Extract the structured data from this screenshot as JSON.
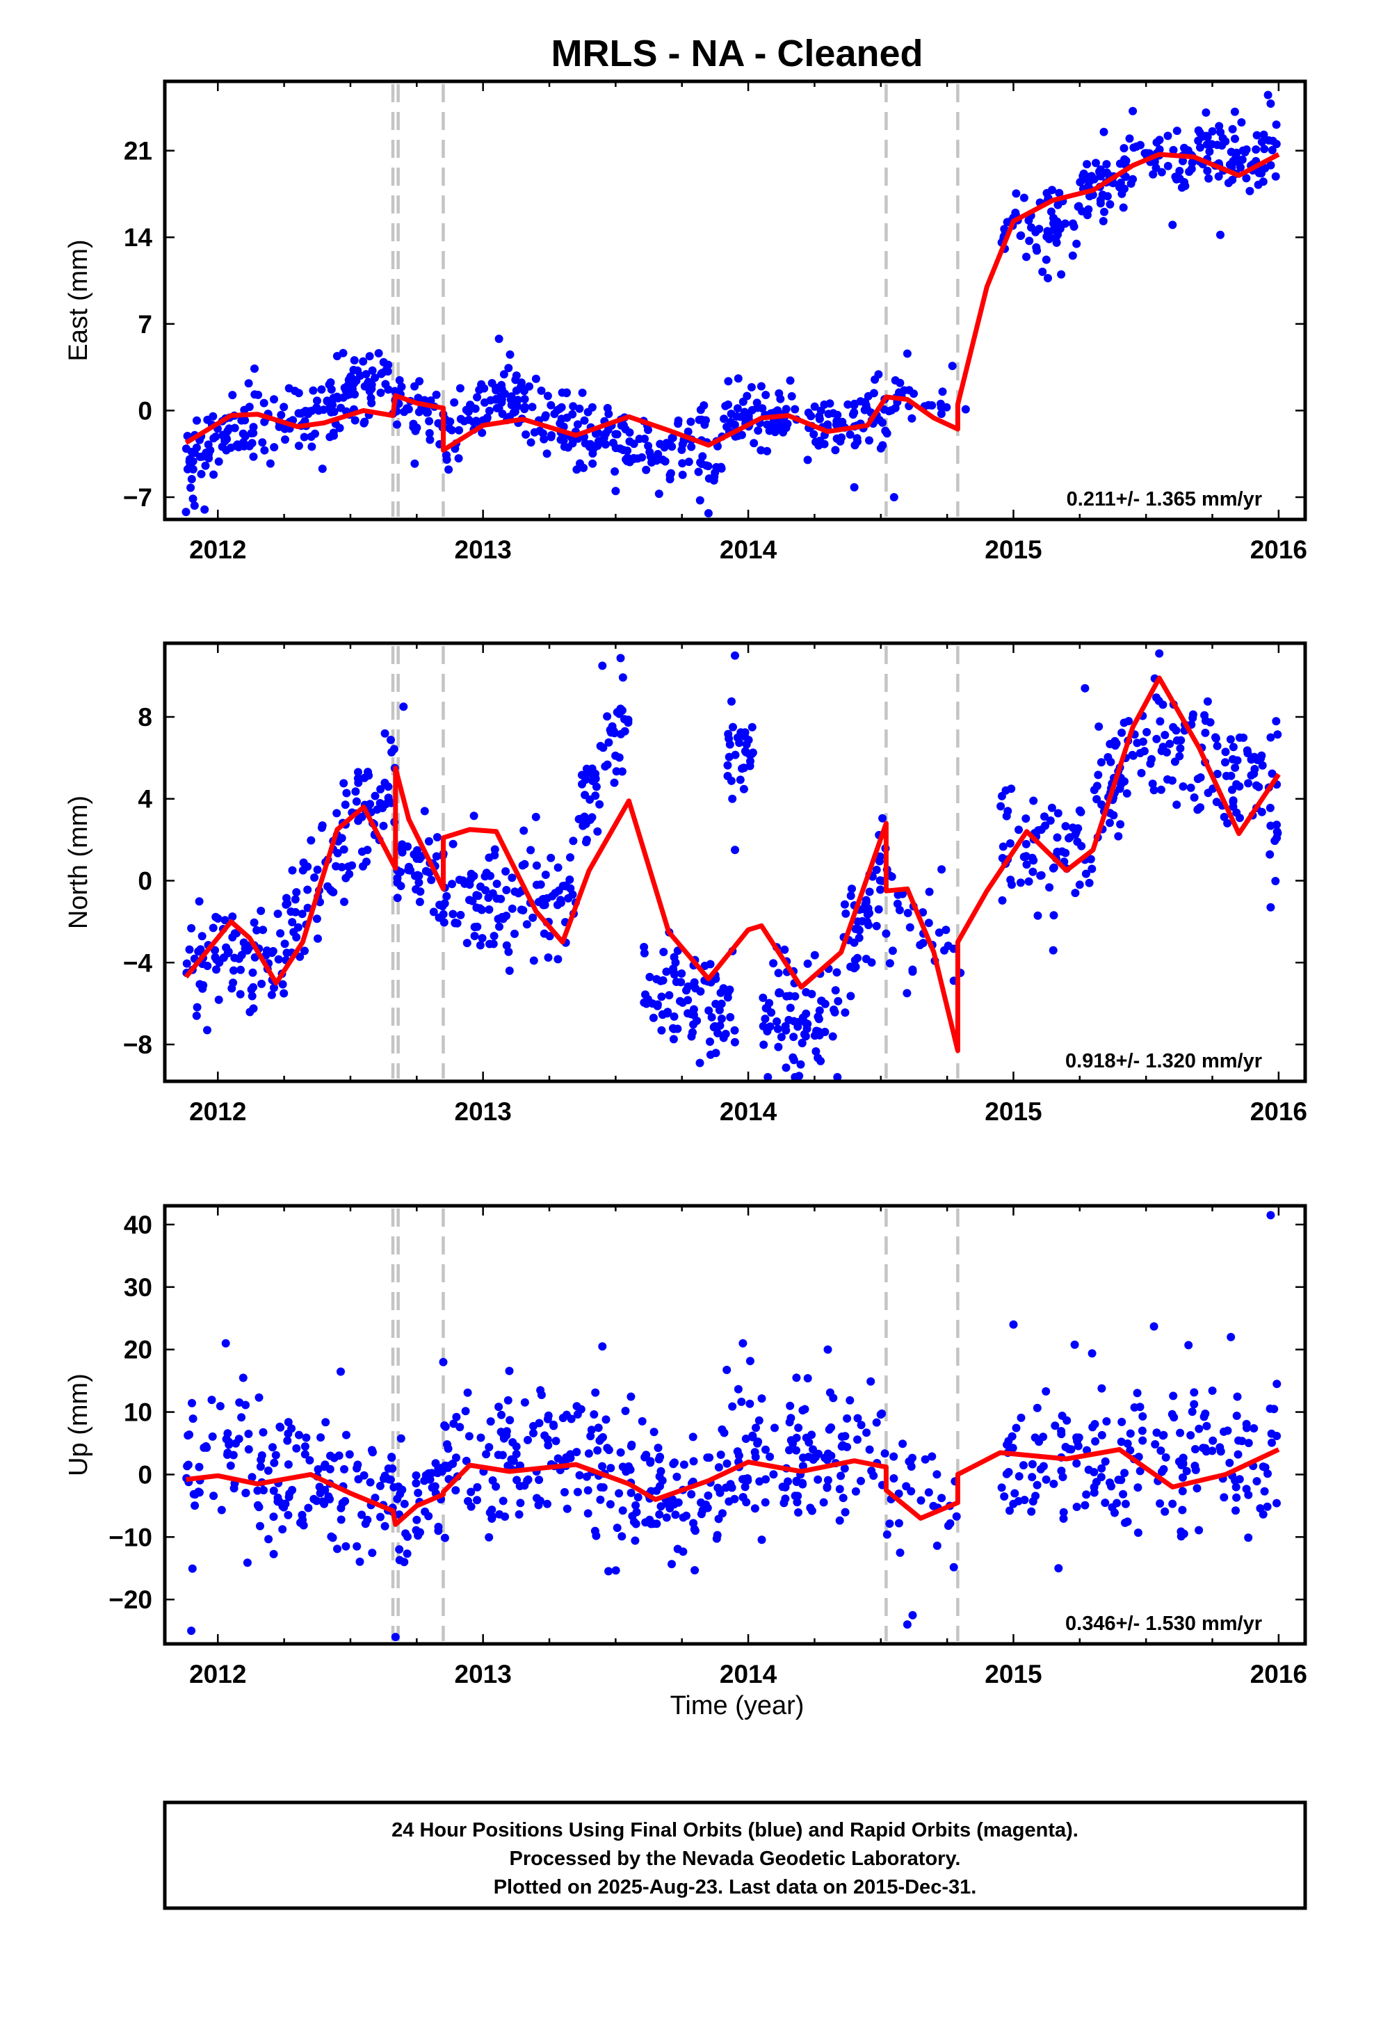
{
  "title": "MRLS  - NA - Cleaned",
  "xlabel": "Time (year)",
  "caption": [
    "24 Hour Positions Using Final Orbits (blue) and Rapid Orbits (magenta).",
    "Processed by the Nevada Geodetic Laboratory.",
    "Plotted on 2025-Aug-23. Last data on 2015-Dec-31."
  ],
  "colors": {
    "points": "#0000ff",
    "model": "#ff0000",
    "breaks": "#c4c4c4"
  },
  "chart_data": [
    {
      "type": "scatter",
      "ylabel": "East (mm)",
      "rate_label": "0.211+/- 1.365 mm/yr",
      "xlim": [
        2011.8,
        2016.1
      ],
      "ylim": [
        -8.8,
        26.6
      ],
      "xticks": [
        2012,
        2013,
        2014,
        2015,
        2016
      ],
      "yticks": [
        -7,
        0,
        7,
        14,
        21
      ],
      "breaks": [
        2012.66,
        2012.68,
        2012.85,
        2014.52,
        2014.79
      ],
      "segments": [
        [
          2011.88,
          2012.67
        ],
        [
          2012.67,
          2012.85
        ],
        [
          2012.85,
          2014.52
        ],
        [
          2014.52,
          2014.79
        ],
        [
          2014.79,
          2016.0
        ]
      ],
      "model": [
        [
          2011.88,
          -2.6
        ],
        [
          2012.05,
          -0.4
        ],
        [
          2012.15,
          -0.3
        ],
        [
          2012.3,
          -1.3
        ],
        [
          2012.4,
          -1.0
        ],
        [
          2012.55,
          0
        ],
        [
          2012.66,
          -0.4
        ],
        [
          2012.67,
          1.2
        ],
        [
          2012.75,
          0.6
        ],
        [
          2012.85,
          0.2
        ],
        [
          2012.85,
          -3.2
        ],
        [
          2013.0,
          -1.2
        ],
        [
          2013.15,
          -0.7
        ],
        [
          2013.35,
          -2.0
        ],
        [
          2013.55,
          -0.5
        ],
        [
          2013.7,
          -1.6
        ],
        [
          2013.85,
          -2.8
        ],
        [
          2014.05,
          -0.6
        ],
        [
          2014.15,
          -0.4
        ],
        [
          2014.3,
          -1.7
        ],
        [
          2014.45,
          -1.2
        ],
        [
          2014.52,
          1.1
        ],
        [
          2014.6,
          0.9
        ],
        [
          2014.7,
          -0.6
        ],
        [
          2014.79,
          -1.5
        ],
        [
          2014.79,
          0.5
        ],
        [
          2014.9,
          10.0
        ],
        [
          2015.0,
          15.3
        ],
        [
          2015.15,
          17.0
        ],
        [
          2015.3,
          17.8
        ],
        [
          2015.45,
          19.8
        ],
        [
          2015.55,
          20.7
        ],
        [
          2015.68,
          20.5
        ],
        [
          2015.85,
          19.0
        ],
        [
          2016.0,
          20.7
        ]
      ],
      "clusters": [
        {
          "x": [
            2011.88,
            2012.1
          ],
          "y": [
            -4.5,
            -0.5
          ],
          "sd": 1.5,
          "n": 60
        },
        {
          "x": [
            2012.1,
            2012.45
          ],
          "y": [
            -1.0,
            0.0
          ],
          "sd": 1.3,
          "n": 80
        },
        {
          "x": [
            2012.45,
            2012.67
          ],
          "y": [
            1.5,
            2.5
          ],
          "sd": 1.4,
          "n": 60
        },
        {
          "x": [
            2012.67,
            2012.85
          ],
          "y": [
            0.5,
            -0.5
          ],
          "sd": 1.3,
          "n": 40
        },
        {
          "x": [
            2012.85,
            2013.0
          ],
          "y": [
            -2.5,
            0.5
          ],
          "sd": 1.3,
          "n": 30
        },
        {
          "x": [
            2013.0,
            2013.3
          ],
          "y": [
            1.5,
            -1.0
          ],
          "sd": 1.3,
          "n": 70
        },
        {
          "x": [
            2013.3,
            2013.7
          ],
          "y": [
            -1.5,
            -3.0
          ],
          "sd": 1.4,
          "n": 90
        },
        {
          "x": [
            2013.7,
            2013.9
          ],
          "y": [
            -2.5,
            -3.5
          ],
          "sd": 1.5,
          "n": 45
        },
        {
          "x": [
            2013.9,
            2014.2
          ],
          "y": [
            -1.0,
            -1.0
          ],
          "sd": 1.4,
          "n": 70
        },
        {
          "x": [
            2014.2,
            2014.52
          ],
          "y": [
            -1.5,
            -0.5
          ],
          "sd": 1.3,
          "n": 70
        },
        {
          "x": [
            2014.52,
            2014.79
          ],
          "y": [
            0.8,
            0.5
          ],
          "sd": 1.2,
          "n": 25
        },
        {
          "x": [
            2014.95,
            2015.25
          ],
          "y": [
            15.0,
            15.5
          ],
          "sd": 1.4,
          "n": 60
        },
        {
          "x": [
            2015.25,
            2015.55
          ],
          "y": [
            17.5,
            20.5
          ],
          "sd": 1.4,
          "n": 70
        },
        {
          "x": [
            2015.55,
            2016.0
          ],
          "y": [
            20.8,
            20.4
          ],
          "sd": 1.3,
          "n": 100
        }
      ],
      "outliers": [
        [
          2011.88,
          -8.2
        ],
        [
          2011.95,
          -8.0
        ],
        [
          2012.45,
          4.4
        ],
        [
          2013.06,
          5.8
        ],
        [
          2013.5,
          -6.5
        ],
        [
          2013.85,
          -8.3
        ],
        [
          2014.4,
          -6.2
        ],
        [
          2014.55,
          -7.0
        ],
        [
          2014.77,
          3.6
        ],
        [
          2014.82,
          0.1
        ],
        [
          2015.13,
          10.7
        ],
        [
          2015.18,
          11.0
        ],
        [
          2015.1,
          16.8
        ],
        [
          2015.96,
          25.5
        ],
        [
          2015.97,
          24.8
        ],
        [
          2015.78,
          14.2
        ],
        [
          2015.45,
          24.2
        ],
        [
          2015.6,
          15.0
        ],
        [
          2014.6,
          4.6
        ]
      ]
    },
    {
      "type": "scatter",
      "ylabel": "North (mm)",
      "rate_label": "0.918+/- 1.320 mm/yr",
      "xlim": [
        2011.8,
        2016.1
      ],
      "ylim": [
        -9.8,
        11.6
      ],
      "xticks": [
        2012,
        2013,
        2014,
        2015,
        2016
      ],
      "yticks": [
        -8,
        -4,
        0,
        4,
        8
      ],
      "breaks": [
        2012.66,
        2012.68,
        2012.85,
        2014.52,
        2014.79
      ],
      "segments": [
        [
          2011.88,
          2012.67
        ],
        [
          2012.67,
          2012.85
        ],
        [
          2012.85,
          2014.52
        ],
        [
          2014.52,
          2014.79
        ],
        [
          2014.79,
          2016.0
        ]
      ],
      "model": [
        [
          2011.88,
          -4.7
        ],
        [
          2012.05,
          -2.0
        ],
        [
          2012.12,
          -2.8
        ],
        [
          2012.22,
          -5.0
        ],
        [
          2012.32,
          -3.0
        ],
        [
          2012.45,
          2.5
        ],
        [
          2012.55,
          3.6
        ],
        [
          2012.67,
          0.6
        ],
        [
          2012.67,
          5.5
        ],
        [
          2012.72,
          3.0
        ],
        [
          2012.85,
          -0.4
        ],
        [
          2012.85,
          2.1
        ],
        [
          2012.95,
          2.5
        ],
        [
          2013.05,
          2.4
        ],
        [
          2013.2,
          -1.5
        ],
        [
          2013.3,
          -3.0
        ],
        [
          2013.4,
          0.5
        ],
        [
          2013.55,
          3.9
        ],
        [
          2013.7,
          -2.5
        ],
        [
          2013.85,
          -4.8
        ],
        [
          2014.0,
          -2.4
        ],
        [
          2014.05,
          -2.2
        ],
        [
          2014.2,
          -5.2
        ],
        [
          2014.35,
          -3.5
        ],
        [
          2014.52,
          2.8
        ],
        [
          2014.52,
          -0.5
        ],
        [
          2014.6,
          -0.4
        ],
        [
          2014.7,
          -3.5
        ],
        [
          2014.79,
          -8.3
        ],
        [
          2014.79,
          -3.0
        ],
        [
          2014.9,
          -0.5
        ],
        [
          2015.05,
          2.4
        ],
        [
          2015.2,
          0.5
        ],
        [
          2015.3,
          1.5
        ],
        [
          2015.45,
          7.5
        ],
        [
          2015.55,
          9.9
        ],
        [
          2015.7,
          6.5
        ],
        [
          2015.85,
          2.3
        ],
        [
          2016.0,
          5.2
        ]
      ],
      "clusters": [
        {
          "x": [
            2011.88,
            2012.25
          ],
          "y": [
            -3.5,
            -4.0
          ],
          "sd": 1.3,
          "n": 80
        },
        {
          "x": [
            2012.25,
            2012.5
          ],
          "y": [
            -2.5,
            2.0
          ],
          "sd": 1.5,
          "n": 60
        },
        {
          "x": [
            2012.5,
            2012.67
          ],
          "y": [
            3.0,
            5.0
          ],
          "sd": 1.4,
          "n": 45
        },
        {
          "x": [
            2012.67,
            2012.85
          ],
          "y": [
            1.0,
            0.0
          ],
          "sd": 1.1,
          "n": 40
        },
        {
          "x": [
            2012.85,
            2013.0
          ],
          "y": [
            -0.5,
            -1.0
          ],
          "sd": 1.2,
          "n": 35
        },
        {
          "x": [
            2013.0,
            2013.35
          ],
          "y": [
            -1.0,
            -0.5
          ],
          "sd": 1.4,
          "n": 80
        },
        {
          "x": [
            2013.35,
            2013.55
          ],
          "y": [
            3.0,
            8.5
          ],
          "sd": 1.3,
          "n": 55
        },
        {
          "x": [
            2013.6,
            2013.95
          ],
          "y": [
            -5.0,
            -6.5
          ],
          "sd": 1.3,
          "n": 90
        },
        {
          "x": [
            2013.92,
            2014.02
          ],
          "y": [
            6.2,
            6.5
          ],
          "sd": 1.1,
          "n": 30
        },
        {
          "x": [
            2014.05,
            2014.35
          ],
          "y": [
            -6.5,
            -7.0
          ],
          "sd": 1.3,
          "n": 80
        },
        {
          "x": [
            2014.35,
            2014.52
          ],
          "y": [
            -4.0,
            0.5
          ],
          "sd": 1.5,
          "n": 50
        },
        {
          "x": [
            2014.52,
            2014.79
          ],
          "y": [
            -1.0,
            -3.0
          ],
          "sd": 1.3,
          "n": 30
        },
        {
          "x": [
            2014.95,
            2015.3
          ],
          "y": [
            1.5,
            1.5
          ],
          "sd": 1.4,
          "n": 70
        },
        {
          "x": [
            2015.3,
            2015.55
          ],
          "y": [
            3.5,
            8.0
          ],
          "sd": 1.4,
          "n": 60
        },
        {
          "x": [
            2015.55,
            2016.0
          ],
          "y": [
            7.0,
            4.0
          ],
          "sd": 1.4,
          "n": 100
        }
      ],
      "outliers": [
        [
          2013.45,
          10.5
        ],
        [
          2013.95,
          11.0
        ],
        [
          2013.95,
          1.5
        ],
        [
          2013.94,
          4.0
        ],
        [
          2012.7,
          8.5
        ],
        [
          2015.27,
          9.4
        ],
        [
          2015.55,
          11.1
        ],
        [
          2015.97,
          -1.3
        ],
        [
          2014.8,
          -4.5
        ],
        [
          2013.1,
          -4.4
        ],
        [
          2015.15,
          -3.4
        ],
        [
          2012.78,
          3.4
        ],
        [
          2011.92,
          -6.6
        ],
        [
          2011.96,
          -7.3
        ]
      ]
    },
    {
      "type": "scatter",
      "ylabel": "Up (mm)",
      "rate_label": "0.346+/- 1.530 mm/yr",
      "xlim": [
        2011.8,
        2016.1
      ],
      "ylim": [
        -27.1,
        43.0
      ],
      "xticks": [
        2012,
        2013,
        2014,
        2015,
        2016
      ],
      "yticks": [
        -20,
        -10,
        0,
        10,
        20,
        30,
        40
      ],
      "breaks": [
        2012.66,
        2012.68,
        2012.85,
        2014.52,
        2014.79
      ],
      "segments": [
        [
          2011.88,
          2012.67
        ],
        [
          2012.67,
          2012.85
        ],
        [
          2012.85,
          2014.52
        ],
        [
          2014.52,
          2014.79
        ],
        [
          2014.79,
          2016.0
        ]
      ],
      "model": [
        [
          2011.88,
          -0.8
        ],
        [
          2012.0,
          -0.2
        ],
        [
          2012.15,
          -1.5
        ],
        [
          2012.35,
          0.0
        ],
        [
          2012.5,
          -3.0
        ],
        [
          2012.66,
          -5.8
        ],
        [
          2012.67,
          -8.0
        ],
        [
          2012.75,
          -5.0
        ],
        [
          2012.85,
          -3.2
        ],
        [
          2012.85,
          -2.8
        ],
        [
          2012.95,
          1.5
        ],
        [
          2013.1,
          0.5
        ],
        [
          2013.35,
          1.6
        ],
        [
          2013.55,
          -1.5
        ],
        [
          2013.65,
          -4.0
        ],
        [
          2013.85,
          -1.0
        ],
        [
          2014.0,
          2.0
        ],
        [
          2014.2,
          0.5
        ],
        [
          2014.4,
          2.2
        ],
        [
          2014.52,
          1.2
        ],
        [
          2014.52,
          -2.5
        ],
        [
          2014.65,
          -7.0
        ],
        [
          2014.79,
          -4.5
        ],
        [
          2014.79,
          0.0
        ],
        [
          2014.95,
          3.5
        ],
        [
          2015.2,
          2.5
        ],
        [
          2015.4,
          4.0
        ],
        [
          2015.6,
          -2.0
        ],
        [
          2015.8,
          0.0
        ],
        [
          2016.0,
          4.0
        ]
      ],
      "clusters": [
        {
          "x": [
            2011.88,
            2012.1
          ],
          "y": [
            2.0,
            3.0
          ],
          "sd": 5.5,
          "n": 40
        },
        {
          "x": [
            2012.1,
            2012.67
          ],
          "y": [
            -2.0,
            -2.0
          ],
          "sd": 6.0,
          "n": 120
        },
        {
          "x": [
            2012.67,
            2012.85
          ],
          "y": [
            -5.0,
            -2.0
          ],
          "sd": 5.0,
          "n": 40
        },
        {
          "x": [
            2012.85,
            2013.5
          ],
          "y": [
            2.0,
            2.0
          ],
          "sd": 5.5,
          "n": 140
        },
        {
          "x": [
            2013.5,
            2013.9
          ],
          "y": [
            -3.0,
            -1.0
          ],
          "sd": 5.5,
          "n": 90
        },
        {
          "x": [
            2013.9,
            2014.52
          ],
          "y": [
            2.0,
            3.0
          ],
          "sd": 5.5,
          "n": 130
        },
        {
          "x": [
            2014.52,
            2014.79
          ],
          "y": [
            -4.0,
            -5.0
          ],
          "sd": 5.0,
          "n": 30
        },
        {
          "x": [
            2014.95,
            2016.0
          ],
          "y": [
            2.0,
            3.0
          ],
          "sd": 6.0,
          "n": 190
        }
      ],
      "outliers": [
        [
          2011.9,
          -25.0
        ],
        [
          2012.67,
          -26.0
        ],
        [
          2015.97,
          41.5
        ],
        [
          2015.0,
          24.0
        ],
        [
          2015.53,
          23.7
        ],
        [
          2012.03,
          21.0
        ],
        [
          2013.45,
          20.5
        ],
        [
          2013.98,
          21.0
        ],
        [
          2014.3,
          20.0
        ],
        [
          2014.6,
          -24.0
        ],
        [
          2014.62,
          -22.5
        ],
        [
          2015.82,
          22.0
        ],
        [
          2012.85,
          18.0
        ],
        [
          2015.17,
          -15.0
        ]
      ]
    }
  ]
}
